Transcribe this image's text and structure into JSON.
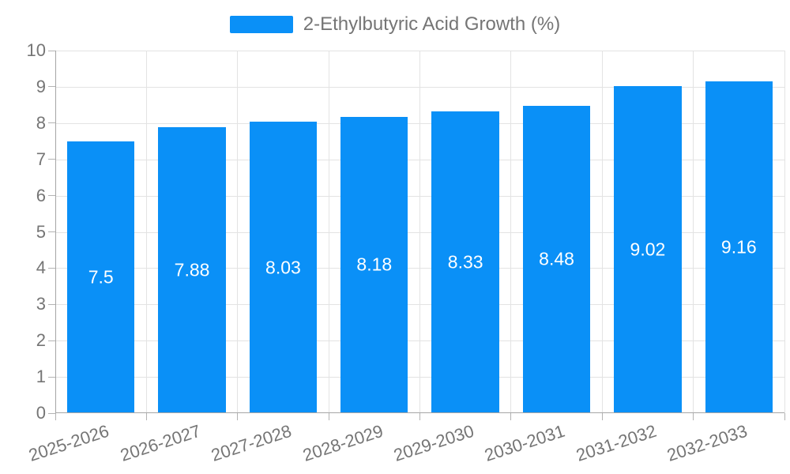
{
  "legend": {
    "label": "2-Ethylbutyric Acid Growth (%)"
  },
  "colors": {
    "bar": "#0A90F7",
    "grid": "#E3E3E3",
    "axis": "#A6A6A6",
    "tick": "#B3B3B3",
    "text": "#757575",
    "value_label": "#FFFFFF",
    "background": "#FFFFFF"
  },
  "chart_data": {
    "type": "bar",
    "title": "",
    "categories": [
      "2025-2026",
      "2026-2027",
      "2027-2028",
      "2028-2029",
      "2029-2030",
      "2030-2031",
      "2031-2032",
      "2032-2033"
    ],
    "series": [
      {
        "name": "2-Ethylbutyric Acid Growth (%)",
        "values": [
          7.5,
          7.88,
          8.03,
          8.18,
          8.33,
          8.48,
          9.02,
          9.16
        ]
      }
    ],
    "value_labels": [
      "7.5",
      "7.88",
      "8.03",
      "8.18",
      "8.33",
      "8.48",
      "9.02",
      "9.16"
    ],
    "xlabel": "",
    "ylabel": "",
    "ylim": [
      0,
      10
    ],
    "yticks": [
      "0",
      "1",
      "2",
      "3",
      "4",
      "5",
      "6",
      "7",
      "8",
      "9",
      "10"
    ],
    "grid": true,
    "legend_position": "top-center",
    "x_label_rotation_deg": -18,
    "value_label_position": "center-inside"
  }
}
